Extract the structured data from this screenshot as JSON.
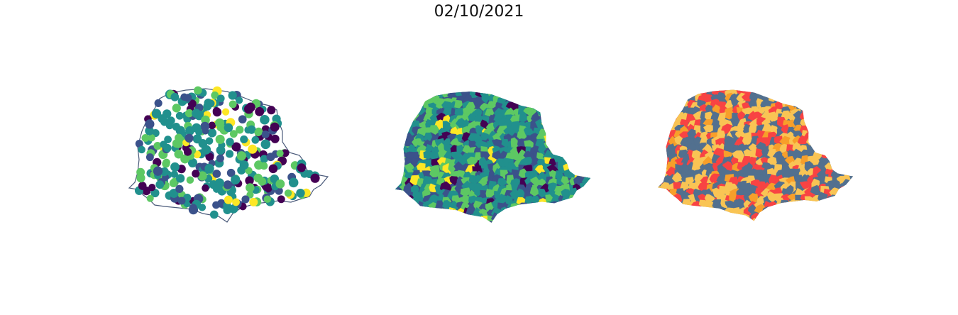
{
  "figure": {
    "title": "02/10/2021",
    "panels": [
      {
        "id": "points",
        "kind": "scatter-points",
        "palette": [
          "#440154",
          "#3b528b",
          "#21908d",
          "#5dc863",
          "#fde725"
        ],
        "outline_color": "#4a5a7a"
      },
      {
        "id": "choropleth",
        "kind": "choropleth-continuous",
        "palette": [
          "#440154",
          "#3b528b",
          "#21908d",
          "#5dc863",
          "#fde725"
        ]
      },
      {
        "id": "classes",
        "kind": "choropleth-categorical",
        "palette": [
          "#52708f",
          "#f9c454",
          "#f84343",
          "#f79f2a"
        ]
      }
    ]
  }
}
